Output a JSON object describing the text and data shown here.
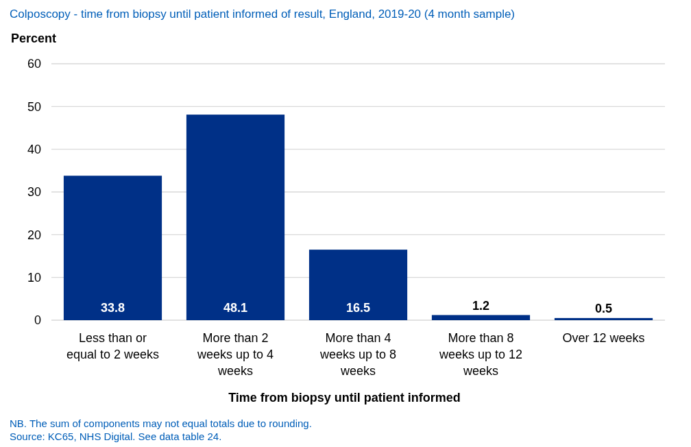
{
  "chart_data": {
    "type": "bar",
    "title": "Colposcopy - time from biopsy until patient informed of result, England, 2019-20 (4 month sample)",
    "ylabel": "Percent",
    "xlabel": "Time from biopsy until patient informed",
    "categories": [
      "Less than or equal to 2 weeks",
      "More than 2 weeks up to 4 weeks",
      "More than 4 weeks up to 8 weeks",
      "More than 8 weeks up to 12 weeks",
      "Over 12 weeks"
    ],
    "values": [
      33.8,
      48.1,
      16.5,
      1.2,
      0.5
    ],
    "color": "#003087",
    "data_labels": true,
    "ylim": [
      0,
      60
    ],
    "yticks": [
      0,
      10,
      20,
      30,
      40,
      50,
      60
    ],
    "grid": "y",
    "annotations": [
      "NB. The sum of components may not equal totals due to rounding.",
      "Source: KC65, NHS Digital. See data table 24."
    ]
  }
}
